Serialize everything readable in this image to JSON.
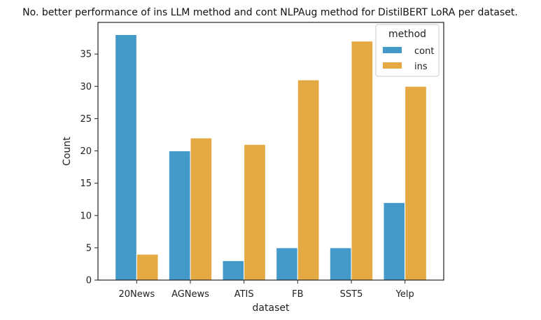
{
  "chart_data": {
    "type": "bar",
    "title": "No. better performance of ins LLM method and cont NLPAug method for DistilBERT LoRA per dataset.",
    "xlabel": "dataset",
    "ylabel": "Count",
    "categories": [
      "20News",
      "AGNews",
      "ATIS",
      "FB",
      "SST5",
      "Yelp"
    ],
    "series": [
      {
        "name": "cont",
        "values": [
          38,
          20,
          3,
          5,
          5,
          12
        ],
        "color": "#4399c8"
      },
      {
        "name": "ins",
        "values": [
          4,
          22,
          21,
          31,
          37,
          30
        ],
        "color": "#e4a942"
      }
    ],
    "ylim": [
      0,
      39.9
    ],
    "yticks": [
      0,
      5,
      10,
      15,
      20,
      25,
      30,
      35
    ],
    "legend": {
      "title": "method",
      "position": "top-right"
    },
    "grid": false
  }
}
